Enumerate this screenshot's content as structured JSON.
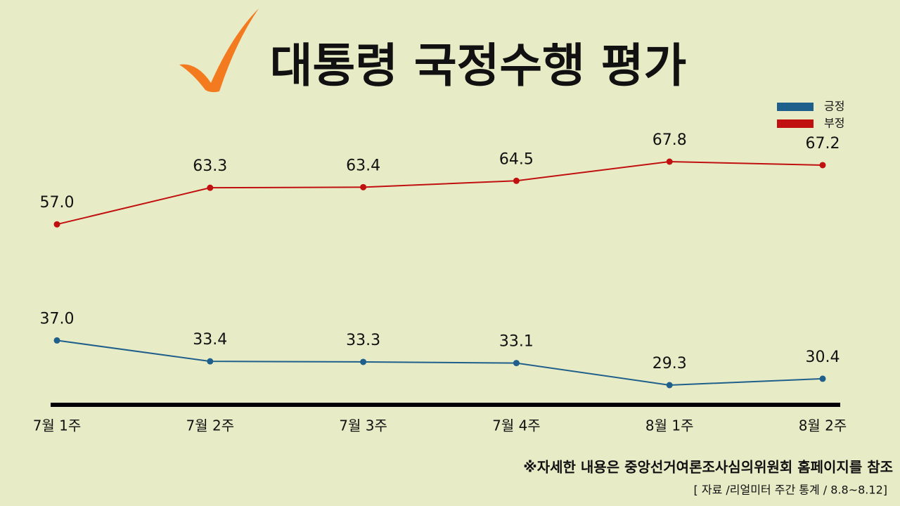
{
  "chart_data": {
    "type": "line",
    "title": "대통령 국정수행 평가",
    "categories": [
      "7월 1주",
      "7월 2주",
      "7월 3주",
      "7월 4주",
      "8월 1주",
      "8월 2주"
    ],
    "series": [
      {
        "name": "긍정",
        "color": "#1f5f8b",
        "values": [
          37.0,
          33.4,
          33.3,
          33.1,
          29.3,
          30.4
        ],
        "value_labels": [
          "37.0",
          "33.4",
          "33.3",
          "33.1",
          "29.3",
          "30.4"
        ]
      },
      {
        "name": "부정",
        "color": "#c0100f",
        "values": [
          57.0,
          63.3,
          63.4,
          64.5,
          67.8,
          67.2
        ],
        "value_labels": [
          "57.0",
          "63.3",
          "63.4",
          "64.5",
          "67.8",
          "67.2"
        ]
      }
    ],
    "legend": "top-right",
    "note": "※자세한 내용은 중앙선거여론조사심의위원회 홈페이지를 참조",
    "source": "[ 자료 /리얼미터 주간 통계 / 8.8~8.12]"
  }
}
